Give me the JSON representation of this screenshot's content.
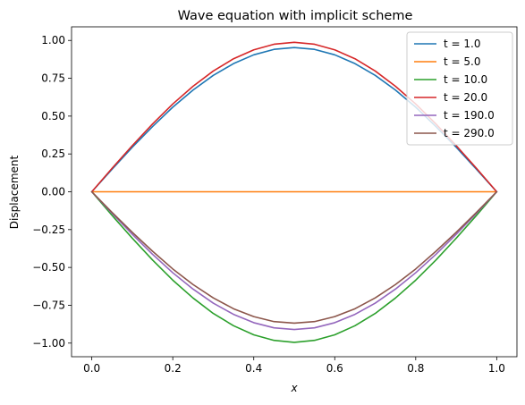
{
  "chart_data": {
    "type": "line",
    "title": "Wave equation with implicit scheme",
    "xlabel": "x",
    "ylabel": "Displacement",
    "xlim": [
      -0.05,
      1.05
    ],
    "ylim": [
      -1.09,
      1.09
    ],
    "x_ticks": [
      0.0,
      0.2,
      0.4,
      0.6,
      0.8,
      1.0
    ],
    "x_tick_labels": [
      "0.0",
      "0.2",
      "0.4",
      "0.6",
      "0.8",
      "1.0"
    ],
    "y_ticks": [
      1.0,
      0.75,
      0.5,
      0.25,
      0.0,
      -0.25,
      -0.5,
      -0.75,
      -1.0
    ],
    "y_tick_labels": [
      "1.00",
      "0.75",
      "0.50",
      "0.25",
      "0.00",
      "−0.25",
      "−0.50",
      "−0.75",
      "−1.00"
    ],
    "grid": false,
    "legend_position": "top-right",
    "x": [
      0.0,
      0.05,
      0.1,
      0.15,
      0.2,
      0.25,
      0.3,
      0.35,
      0.4,
      0.45,
      0.5,
      0.55,
      0.6,
      0.65,
      0.7,
      0.75,
      0.8,
      0.85,
      0.9,
      0.95,
      1.0
    ],
    "series": [
      {
        "name": "t = 1.0",
        "color": "#1f77b4",
        "values": [
          0.0,
          0.149,
          0.294,
          0.431,
          0.559,
          0.672,
          0.769,
          0.847,
          0.905,
          0.941,
          0.953,
          0.941,
          0.905,
          0.847,
          0.769,
          0.672,
          0.559,
          0.431,
          0.294,
          0.149,
          0.0
        ]
      },
      {
        "name": "t = 5.0",
        "color": "#ff7f0e",
        "values": [
          0.0,
          0.0,
          0.0,
          0.0,
          0.0,
          0.0,
          0.0,
          0.0,
          0.0,
          0.0,
          0.0,
          0.0,
          0.0,
          0.0,
          0.0,
          0.0,
          0.0,
          0.0,
          0.0,
          0.0,
          0.0
        ]
      },
      {
        "name": "t = 10.0",
        "color": "#2ca02c",
        "values": [
          0.0,
          -0.156,
          -0.307,
          -0.451,
          -0.584,
          -0.702,
          -0.804,
          -0.885,
          -0.945,
          -0.982,
          -0.995,
          -0.982,
          -0.945,
          -0.885,
          -0.804,
          -0.702,
          -0.584,
          -0.451,
          -0.307,
          -0.156,
          0.0
        ]
      },
      {
        "name": "t = 20.0",
        "color": "#d62728",
        "values": [
          0.0,
          0.155,
          0.305,
          0.448,
          0.58,
          0.697,
          0.798,
          0.879,
          0.938,
          0.975,
          0.988,
          0.975,
          0.938,
          0.879,
          0.798,
          0.697,
          0.58,
          0.448,
          0.305,
          0.155,
          0.0
        ]
      },
      {
        "name": "t = 190.0",
        "color": "#9467bd",
        "values": [
          0.0,
          -0.142,
          -0.281,
          -0.413,
          -0.535,
          -0.643,
          -0.736,
          -0.81,
          -0.865,
          -0.899,
          -0.91,
          -0.899,
          -0.865,
          -0.81,
          -0.736,
          -0.643,
          -0.535,
          -0.413,
          -0.281,
          -0.142,
          0.0
        ]
      },
      {
        "name": "t = 290.0",
        "color": "#8c564b",
        "values": [
          0.0,
          -0.136,
          -0.268,
          -0.393,
          -0.51,
          -0.613,
          -0.701,
          -0.773,
          -0.825,
          -0.858,
          -0.868,
          -0.858,
          -0.825,
          -0.773,
          -0.701,
          -0.613,
          -0.51,
          -0.393,
          -0.268,
          -0.136,
          0.0
        ]
      }
    ]
  }
}
